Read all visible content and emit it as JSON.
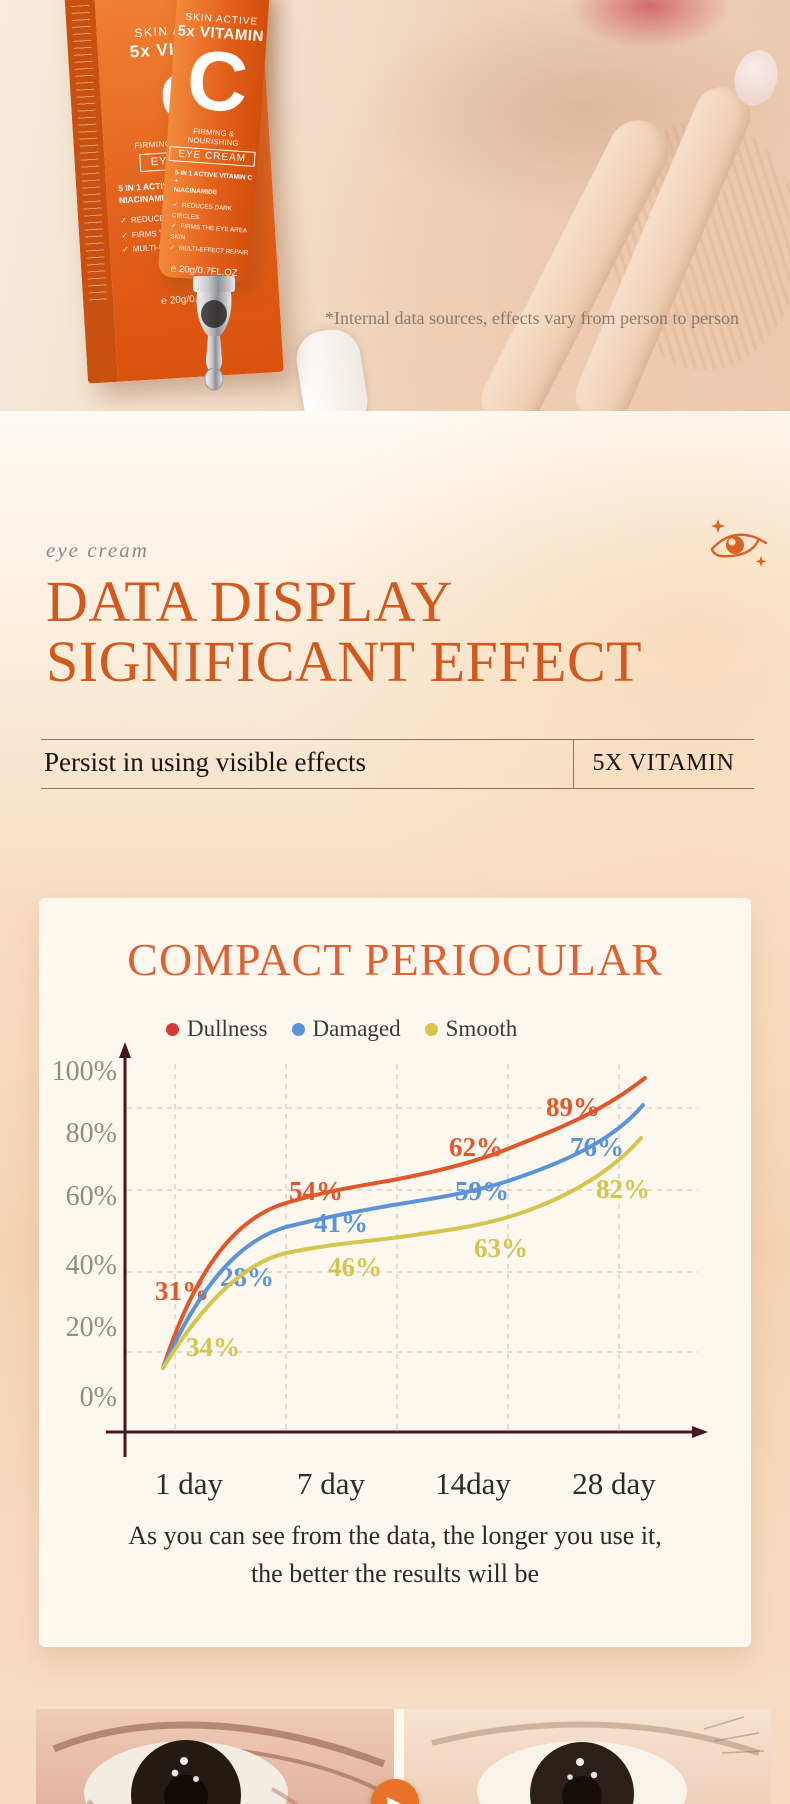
{
  "hero": {
    "disclaimer": "*Internal data sources, effects vary from person to person",
    "product": {
      "brand": "SKIN ACTIVE",
      "vitamin": "5x VITAMIN",
      "letter": "C",
      "firming": "FIRMING & NOURISHING",
      "eye_cream": "EYE CREAM",
      "claim1": "5 IN 1 ACTIVE VITAMIN C +",
      "claim2": "NIACINAMIDE",
      "bullets": [
        "REDUCES DARK CIRCLES",
        "FIRMS THE EYE AREA SKIN",
        "MULTI-EFFECT REPAIR"
      ],
      "volume": "℮ 20g/0.7FL.OZ"
    }
  },
  "intro": {
    "kicker": "eye cream",
    "title_line1": "DATA DISPLAY",
    "title_line2": "SIGNIFICANT EFFECT",
    "subtitle_left": "Persist in using visible effects",
    "subtitle_right": "5X VITAMIN"
  },
  "chart_card": {
    "caption_line1": "As you can see from the data, the longer you use it,",
    "caption_line2": "the better the results will be"
  },
  "chart_data": {
    "type": "line",
    "title": "COMPACT PERIOCULAR",
    "categories": [
      "1 day",
      "7 day",
      "14day",
      "28 day"
    ],
    "x_days": [
      1,
      7,
      14,
      28
    ],
    "series": [
      {
        "name": "Dullness",
        "line_color": "#e2572a",
        "dot_color": "#d63b3b",
        "values": [
          31,
          54,
          62,
          89
        ]
      },
      {
        "name": "Damaged",
        "line_color": "#5b93d8",
        "dot_color": "#5b93d8",
        "values": [
          28,
          41,
          59,
          76
        ]
      },
      {
        "name": "Smooth",
        "line_color": "#d5c44e",
        "dot_color": "#d5c44e",
        "values": [
          34,
          46,
          63,
          82
        ]
      }
    ],
    "y_ticks": [
      "100%",
      "80%",
      "60%",
      "40%",
      "20%",
      "0%"
    ],
    "ylim": [
      0,
      100
    ],
    "grid": true,
    "legend_position": "top",
    "axis_color": "#4a1520"
  },
  "icons": {
    "check": "✓",
    "play": "▶",
    "eye_sparkle": "eye-with-sparkles"
  }
}
